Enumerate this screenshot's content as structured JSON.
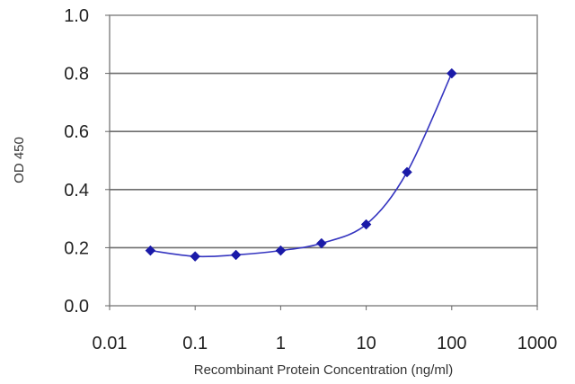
{
  "chart_data": {
    "type": "line",
    "title": "",
    "xlabel": "Recombinant Protein Concentration (ng/ml)",
    "ylabel": "OD 450",
    "xscale": "log",
    "xlim": [
      0.01,
      1000
    ],
    "ylim": [
      0.0,
      1.0
    ],
    "x_ticks": [
      0.01,
      0.1,
      1,
      10,
      100,
      1000
    ],
    "x_tick_labels": [
      "0.01",
      "0.1",
      "1",
      "10",
      "100",
      "1000"
    ],
    "y_ticks": [
      0.0,
      0.2,
      0.4,
      0.6,
      0.8,
      1.0
    ],
    "y_tick_labels": [
      "0.0",
      "0.2",
      "0.4",
      "0.6",
      "0.8",
      "1.0"
    ],
    "grid": "horizontal",
    "legend": "none",
    "series": [
      {
        "x": [
          0.03,
          0.1,
          0.3,
          1,
          3,
          10,
          30,
          100
        ],
        "y": [
          0.19,
          0.17,
          0.175,
          0.19,
          0.215,
          0.28,
          0.46,
          0.8
        ],
        "color": "#1a1aa8",
        "marker": "diamond"
      }
    ]
  }
}
